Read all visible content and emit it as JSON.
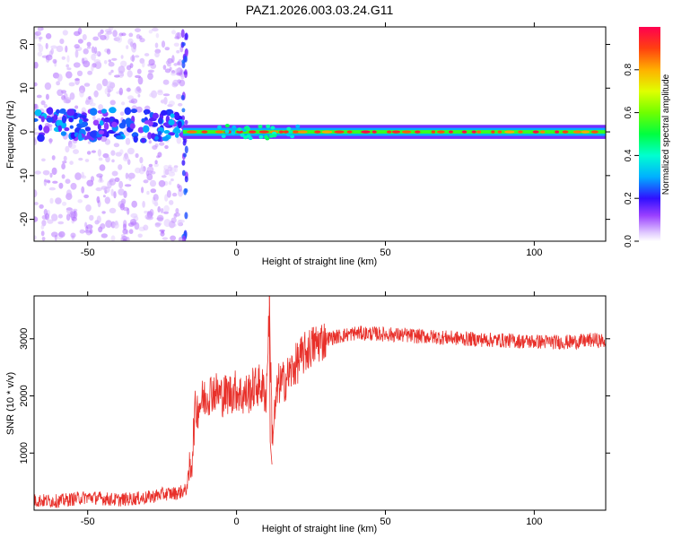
{
  "title": "PAZ1.2026.003.03.24.G11",
  "colors": {
    "snr_line": "#e8302a",
    "background_spectrogram": "#ffffff",
    "axis": "#000000"
  },
  "chart_data": [
    {
      "type": "heatmap",
      "name": "spectrogram",
      "xlabel": "Height of straight line (km)",
      "ylabel": "Frequency (Hz)",
      "xlim": [
        -68,
        124
      ],
      "ylim": [
        -25,
        24
      ],
      "xticks": [
        "-50",
        "0",
        "50",
        "100"
      ],
      "xtick_values": [
        -50,
        0,
        50,
        100
      ],
      "yticks": [
        "-20",
        "-10",
        "0",
        "10",
        "20"
      ],
      "ytick_values": [
        -20,
        -10,
        0,
        10,
        20
      ],
      "description_bands": [
        {
          "x_range": [
            -68,
            -18
          ],
          "freq_center": 1.5,
          "freq_halfwidth": 3.5,
          "amplitude": 0.25,
          "noisy": true
        },
        {
          "x_range": [
            -18,
            124
          ],
          "freq_center": 0,
          "freq_halfwidth": 1,
          "amplitude": 0.55,
          "noisy": false
        }
      ],
      "colorbar": {
        "label": "Normalized spectral amplitude",
        "ticks": [
          "0.0",
          "0.2",
          "0.4",
          "0.6",
          "0.8"
        ],
        "tick_values": [
          0.0,
          0.2,
          0.4,
          0.6,
          0.8
        ],
        "range": [
          0,
          1
        ],
        "colormap": "rainbow"
      }
    },
    {
      "type": "line",
      "name": "snr",
      "xlabel": "Height of straight line (km)",
      "ylabel": "SNR (10 * v/v)",
      "xlim": [
        -68,
        124
      ],
      "ylim": [
        0,
        3750
      ],
      "xticks": [
        "-50",
        "0",
        "50",
        "100"
      ],
      "xtick_values": [
        -50,
        0,
        50,
        100
      ],
      "yticks": [
        "1000",
        "2000",
        "3000"
      ],
      "ytick_values": [
        1000,
        2000,
        3000
      ],
      "series": [
        {
          "name": "SNR",
          "x": [
            -68,
            -60,
            -50,
            -40,
            -30,
            -25,
            -20,
            -17,
            -15,
            -14,
            -12,
            -10,
            -8,
            -5,
            -2,
            0,
            2,
            4,
            6,
            8,
            10,
            11,
            12,
            14,
            16,
            18,
            20,
            22,
            25,
            28,
            30,
            35,
            40,
            50,
            60,
            70,
            80,
            90,
            100,
            110,
            115,
            120,
            124
          ],
          "values": [
            170,
            160,
            230,
            180,
            220,
            280,
            300,
            350,
            900,
            1700,
            1900,
            2000,
            2100,
            2000,
            2050,
            2100,
            2000,
            2050,
            2150,
            2200,
            2000,
            3600,
            1300,
            2200,
            2250,
            2400,
            2550,
            2700,
            2850,
            2950,
            3000,
            3050,
            3100,
            3080,
            3050,
            3020,
            2990,
            2970,
            2950,
            2940,
            2950,
            2980,
            2950
          ]
        }
      ]
    }
  ]
}
